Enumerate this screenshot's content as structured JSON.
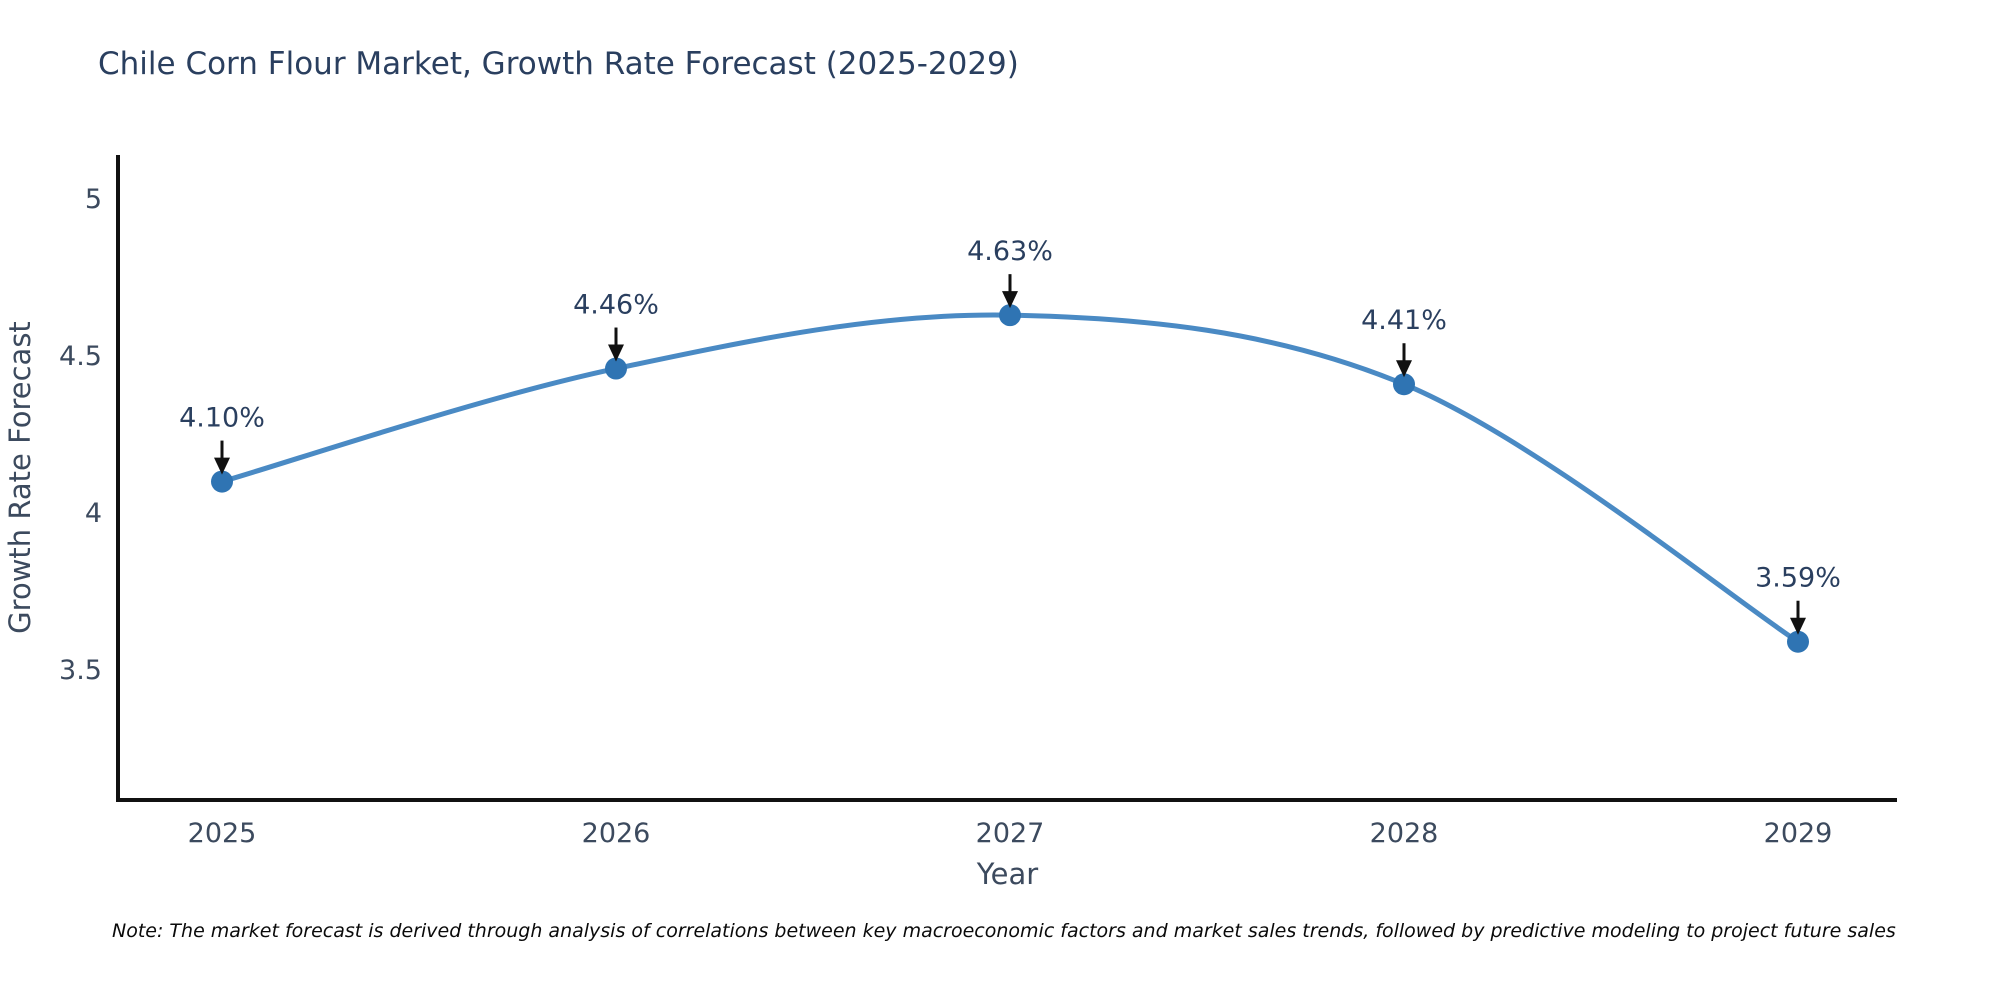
{
  "page": {
    "title": "Chile Corn Flour Market, Growth Rate Forecast (2025-2029)",
    "note": "Note: The market forecast is derived through analysis of correlations between key macroeconomic factors and market sales trends, followed by predictive modeling to project future sales"
  },
  "chart_data": {
    "type": "line",
    "title": "Chile Corn Flour Market, Growth Rate Forecast (2025-2029)",
    "xlabel": "Year",
    "ylabel": "Growth Rate Forecast",
    "categories": [
      "2025",
      "2026",
      "2027",
      "2028",
      "2029"
    ],
    "values": [
      4.1,
      4.46,
      4.63,
      4.41,
      3.59
    ],
    "point_labels": [
      "4.10%",
      "4.46%",
      "4.63%",
      "4.41%",
      "3.59%"
    ],
    "yticks": [
      3.5,
      4,
      4.5,
      5
    ],
    "ylim": [
      3.086,
      5.14
    ],
    "grid": false,
    "legend": false,
    "line_color": "#4a8ac4",
    "marker_color": "#2f74b3",
    "axis_color": "#111111",
    "arrow_color": "#111111",
    "text_color": "#2a3f5f",
    "tick_color": "#3c4a5e"
  }
}
